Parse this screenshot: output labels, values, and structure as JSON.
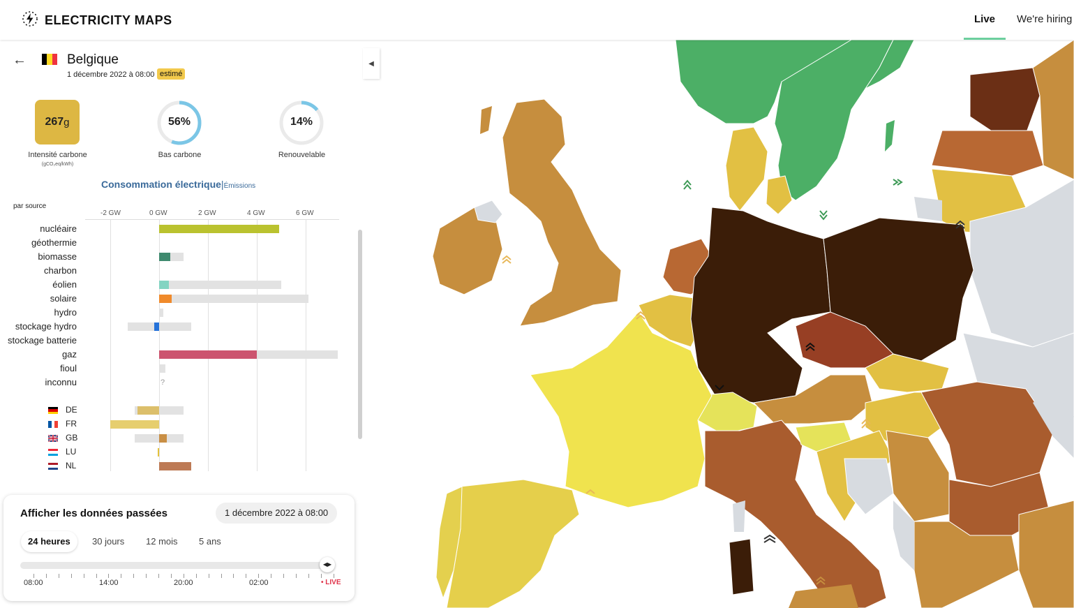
{
  "header": {
    "logo_text": "ELECTRICITY MAPS",
    "nav_live": "Live",
    "nav_hiring": "We're hiring"
  },
  "zone": {
    "name": "Belgique",
    "datetime": "1 décembre 2022 à 08:00",
    "badge": "estimé",
    "flag_colors": [
      "#000000",
      "#fdda24",
      "#ef3340"
    ]
  },
  "metrics": {
    "carbon_intensity_value": "267",
    "carbon_intensity_unit": "g",
    "carbon_intensity_label": "Intensité carbone",
    "carbon_intensity_sublabel": "(gCO₂eq/kWh)",
    "low_carbon_value": "56%",
    "low_carbon_fraction": 0.56,
    "low_carbon_label": "Bas carbone",
    "renewable_value": "14%",
    "renewable_fraction": 0.14,
    "renewable_label": "Renouvelable"
  },
  "chart": {
    "title": "Consommation électrique",
    "separator": "|",
    "alt_tab": "Émissions",
    "by_source_label": "par source",
    "axis_labels": [
      "-2 GW",
      "0 GW",
      "2 GW",
      "4 GW",
      "6 GW"
    ],
    "unknown_marker": "?"
  },
  "chart_data": {
    "type": "bar",
    "xlabel": "",
    "ylabel": "",
    "xlim": [
      -2,
      7.3
    ],
    "axis_unit": "GW",
    "categories": [
      "nucléaire",
      "géothermie",
      "biomasse",
      "charbon",
      "éolien",
      "solaire",
      "hydro",
      "stockage hydro",
      "stockage batterie",
      "gaz",
      "fioul",
      "inconnu"
    ],
    "series": [
      {
        "values": [
          4.9,
          0,
          0.45,
          0,
          0.4,
          0.5,
          0,
          -0.2,
          0,
          4.0,
          0,
          0
        ]
      }
    ],
    "capacity": [
      4.9,
      0,
      1.0,
      0,
      5.0,
      6.1,
      0.18,
      1.3,
      0,
      7.3,
      0.25,
      0
    ],
    "capacity_neg": [
      0,
      0,
      0,
      0,
      0,
      0,
      0,
      -1.3,
      0,
      0,
      0,
      0
    ],
    "colors": [
      "#bac22f",
      "#cccccc",
      "#3f8a6f",
      "#333333",
      "#83d4c2",
      "#f08a2b",
      "#2572d9",
      "#2572d9",
      "#b33b81",
      "#cc546f",
      "#9a5a3d",
      "#aaaaaa"
    ],
    "exchanges": [
      {
        "code": "DE",
        "value": -0.9,
        "capacity_pos": 1.0,
        "capacity_neg": -1.0,
        "color": "#dcbf6b"
      },
      {
        "code": "FR",
        "value": -2.0,
        "capacity_pos": 0,
        "capacity_neg": -2.0,
        "color": "#e6ce6e"
      },
      {
        "code": "GB",
        "value": 0.3,
        "capacity_pos": 1.0,
        "capacity_neg": -1.0,
        "color": "#c98f45"
      },
      {
        "code": "LU",
        "value": -0.05,
        "capacity_pos": 0,
        "capacity_neg": -0.05,
        "color": "#e4c23c"
      },
      {
        "code": "NL",
        "value": 1.3,
        "capacity_pos": 1.3,
        "capacity_neg": 0,
        "color": "#bd7a55"
      }
    ]
  },
  "time_controller": {
    "title": "Afficher les données passées",
    "date_pill": "1 décembre 2022 à 08:00",
    "tabs": [
      "24 heures",
      "30 jours",
      "12 mois",
      "5 ans"
    ],
    "active_tab": "24 heures",
    "tick_labels": [
      "08:00",
      "14:00",
      "20:00",
      "02:00"
    ],
    "live_label": "• LIVE"
  },
  "map_colors": {
    "very_low": "#4caf66",
    "low": "#f0e34e",
    "medium": "#e2c043",
    "medium_high": "#c68e3e",
    "high": "#a95c2e",
    "very_high": "#3b1d08",
    "no_data": "#d7dbe0"
  }
}
